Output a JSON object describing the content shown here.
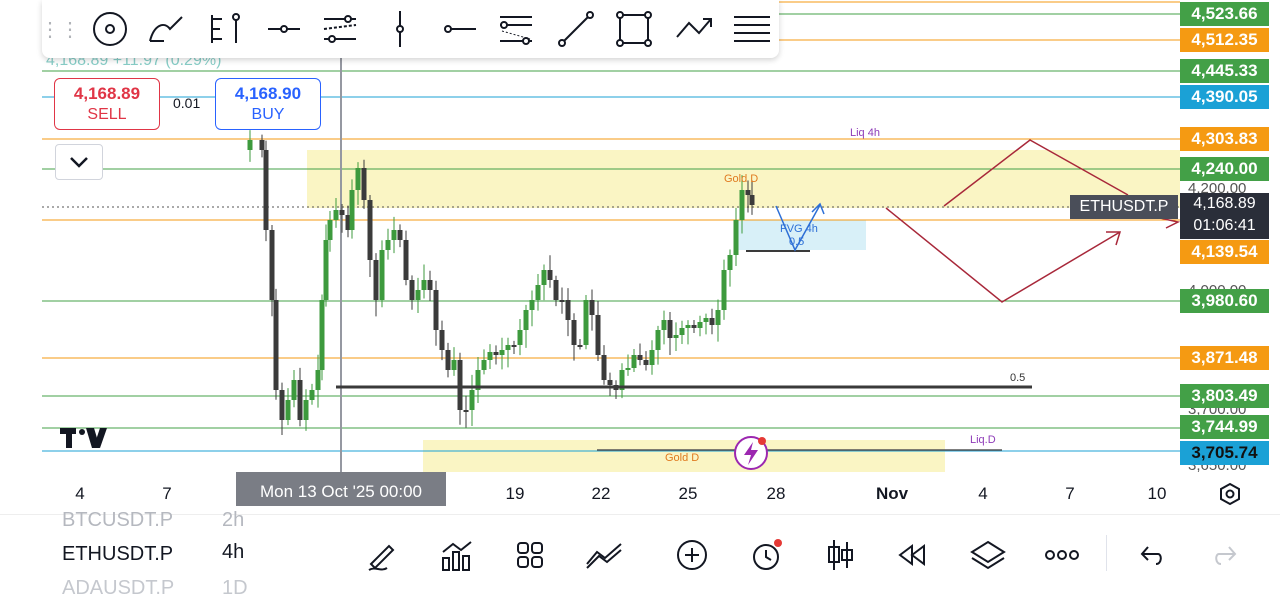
{
  "drawing_toolbar": {
    "tools": [
      "drag-grip-icon",
      "cursor-circle-icon",
      "brush-icon",
      "fib-ruler-icon",
      "horizontal-ray-icon",
      "parallel-channel-icon",
      "vertical-line-icon",
      "horizontal-line-icon",
      "fib-retracement-icon",
      "trend-line-icon",
      "rectangle-icon",
      "path-icon",
      "settings-lines-icon"
    ]
  },
  "legend": {
    "text": "4,168.89  +11.97 (0.29%)"
  },
  "trade": {
    "sell_price": "4,168.89",
    "sell_label": "SELL",
    "spread": "0.01",
    "buy_price": "4,168.90",
    "buy_label": "BUY"
  },
  "price_axis": {
    "labels": [
      {
        "text": "4,523.66",
        "color": "#43a047"
      },
      {
        "text": "4,512.35",
        "color": "#f59a12"
      },
      {
        "text": "4,445.33",
        "color": "#43a047"
      },
      {
        "text": "4,390.05",
        "color": "#1ba1d6"
      },
      {
        "text": "4,303.83",
        "color": "#f59a12"
      },
      {
        "text": "4,240.00",
        "color": "#43a047"
      },
      {
        "text": "4,139.54",
        "color": "#f59a12"
      },
      {
        "text": "3,980.60",
        "color": "#43a047"
      },
      {
        "text": "3,871.48",
        "color": "#f59a12"
      },
      {
        "text": "3,803.49",
        "color": "#43a047"
      },
      {
        "text": "3,744.99",
        "color": "#43a047"
      },
      {
        "text": "3,705.74",
        "color": "#1ba1d6"
      }
    ],
    "ticks": [
      "4,200.00",
      "4,000.00",
      "3,700.00",
      "3,650.00"
    ],
    "symbol_tag": "ETHUSDT.P",
    "last_price": "4,168.89",
    "countdown": "01:06:41"
  },
  "annotations": {
    "liq_4h": "Liq 4h",
    "gold_d_top": "Gold D",
    "fvg_4h": "FVG 4h",
    "fvg_mid": "0.5",
    "fib_half": "0.5",
    "liq_d": "Liq.D",
    "gold_d_bottom": "Gold D"
  },
  "time_axis": {
    "labels": [
      "4",
      "7",
      "19",
      "22",
      "25",
      "28",
      "Nov",
      "4",
      "7",
      "10"
    ],
    "cursor": "Mon 13 Oct '25   00:00"
  },
  "bottom_bar": {
    "symbol_prev": "BTCUSDT.P",
    "interval_prev": "2h",
    "symbol": "ETHUSDT.P",
    "interval": "4h",
    "symbol_next": "ADAUSDT.P",
    "interval_next": "1D",
    "tools": [
      "pencil-icon",
      "indicators-icon",
      "layout-grid-icon",
      "compare-icon",
      "add-icon",
      "alert-clock-icon",
      "candle-type-icon",
      "replay-icon",
      "layers-icon",
      "more-icon",
      "undo-icon",
      "redo-icon"
    ]
  },
  "colors": {
    "green": "#43a047",
    "orange": "#f59a12",
    "cyan": "#1ba1d6",
    "candle_up": "#3d9a3d",
    "candle_down": "#3b3b3b",
    "zone": "#faf5c4"
  }
}
